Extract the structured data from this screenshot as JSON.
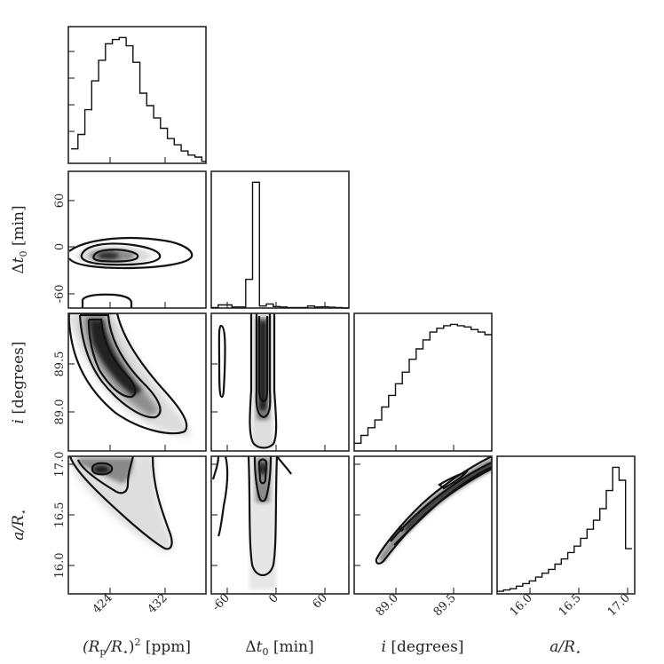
{
  "chart_data": {
    "type": "corner",
    "parameters": [
      {
        "id": "rp",
        "label_parts": [
          {
            "t": "(R",
            "i": true
          },
          {
            "t": "p",
            "sub": true
          },
          {
            "t": "/R",
            "i": true
          },
          {
            "t": "⋆",
            "sub": true
          },
          {
            "t": ")²",
            "i": false
          },
          {
            "t": " [ppm]",
            "i": false
          }
        ],
        "range": [
          418.5,
          438.5
        ],
        "ticks": [
          424,
          432
        ]
      },
      {
        "id": "dt",
        "label_parts": [
          {
            "t": "Δ",
            "i": false
          },
          {
            "t": "t",
            "i": true
          },
          {
            "t": "0",
            "sub": true
          },
          {
            "t": " [min]",
            "i": false
          }
        ],
        "range": [
          -75,
          95
        ],
        "ticks": [
          -60,
          0,
          60
        ]
      },
      {
        "id": "inc",
        "label_parts": [
          {
            "t": "i",
            "i": true
          },
          {
            "t": " [degrees]",
            "i": false
          }
        ],
        "range": [
          88.65,
          90.0
        ],
        "ticks": [
          89.0,
          89.5
        ]
      },
      {
        "id": "ar",
        "label_parts": [
          {
            "t": "a/R",
            "i": true
          },
          {
            "t": "⋆",
            "sub": true
          }
        ],
        "range": [
          15.6,
          17.1
        ],
        "ticks": [
          16.0,
          16.5,
          17.0
        ]
      }
    ],
    "histograms": {
      "rp": {
        "edges_from": 418.9,
        "bin_width": 1.0,
        "counts": [
          7,
          14,
          26,
          40,
          50,
          58,
          60,
          61,
          57,
          49,
          34,
          28,
          22,
          17,
          12,
          9,
          6,
          4,
          3,
          1
        ]
      },
      "dt": {
        "edges_from": -75,
        "bin_width": 8.5,
        "counts": [
          0.5,
          3,
          3,
          1,
          1,
          28,
          123,
          2,
          4,
          1.5,
          1,
          0.5,
          0.5,
          0.5,
          2,
          1,
          1.2,
          0.8,
          0.4,
          0
        ]
      },
      "inc": {
        "edges_from": 88.65,
        "bin_width": 0.0675,
        "counts": [
          6,
          12,
          18,
          24,
          34,
          43,
          52,
          61,
          71,
          79,
          86,
          92,
          95,
          97,
          98,
          97,
          96,
          94,
          92,
          90
        ]
      },
      "ar": {
        "edges_from": 15.6,
        "bin_width": 0.07,
        "counts": [
          2,
          3,
          4,
          6,
          8,
          10,
          13,
          16,
          19,
          23,
          27,
          32,
          37,
          43,
          50,
          57,
          66,
          80,
          98,
          88,
          35
        ]
      }
    }
  },
  "colors": {
    "ink": "#111111",
    "frame": "#262626",
    "background": "#ffffff",
    "density_dark": "#1a1a1a",
    "density_light": "#f2f2f2"
  }
}
